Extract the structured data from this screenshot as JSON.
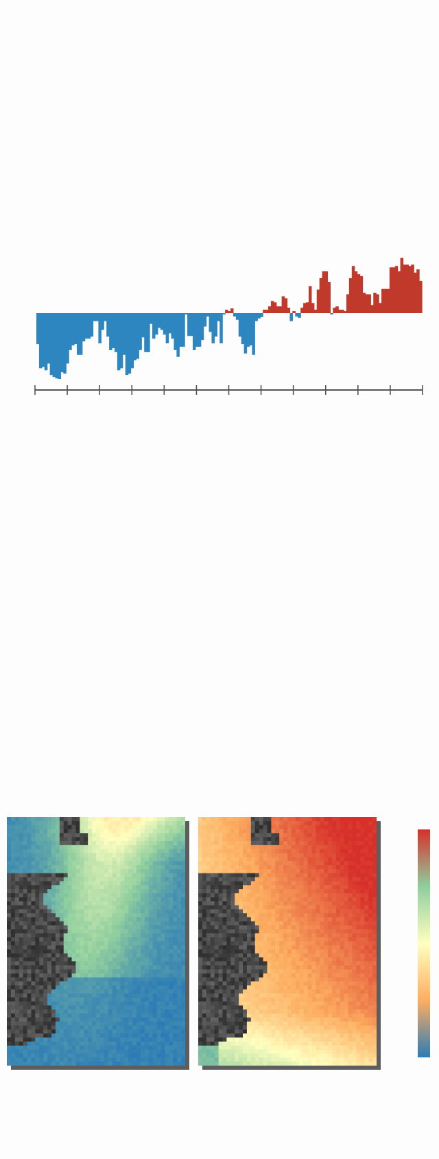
{
  "chart_data": {
    "type": "bar",
    "title": "",
    "xlabel": "",
    "ylabel": "",
    "ylim": [
      -1.0,
      0.85
    ],
    "colors": {
      "positive": "#c0392b",
      "negative": "#2e86c1"
    },
    "axis_ticks": 13,
    "values": [
      -0.46,
      -0.82,
      -0.8,
      -0.85,
      -0.75,
      -0.92,
      -0.95,
      -0.97,
      -0.98,
      -0.88,
      -0.9,
      -0.75,
      -0.55,
      -0.48,
      -0.46,
      -0.62,
      -0.62,
      -0.42,
      -0.38,
      -0.38,
      -0.35,
      -0.12,
      -0.12,
      -0.45,
      -0.25,
      -0.12,
      -0.35,
      -0.55,
      -0.52,
      -0.58,
      -0.85,
      -0.82,
      -0.62,
      -0.92,
      -0.9,
      -0.82,
      -0.7,
      -0.68,
      -0.55,
      -0.36,
      -0.58,
      -0.58,
      -0.16,
      -0.38,
      -0.32,
      -0.22,
      -0.25,
      -0.32,
      -0.45,
      -0.3,
      -0.38,
      -0.55,
      -0.65,
      -0.5,
      -0.5,
      -0.02,
      -0.34,
      -0.34,
      -0.55,
      -0.5,
      -0.5,
      -0.4,
      -0.2,
      -0.05,
      -0.28,
      -0.45,
      -0.35,
      -0.12,
      -0.45,
      -0.02,
      0.05,
      0.03,
      0.07,
      -0.05,
      -0.1,
      -0.35,
      -0.46,
      -0.6,
      -0.5,
      -0.48,
      -0.62,
      -0.12,
      -0.08,
      -0.06,
      0.05,
      0.05,
      0.1,
      0.18,
      0.16,
      0.1,
      0.1,
      0.25,
      0.22,
      0.08,
      -0.12,
      0.03,
      -0.05,
      -0.07,
      0.08,
      0.15,
      0.16,
      0.4,
      0.15,
      0.05,
      0.35,
      0.52,
      0.62,
      0.62,
      0.46,
      -0.02,
      0.08,
      0.1,
      0.05,
      0.05,
      0.03,
      0.28,
      0.52,
      0.7,
      0.62,
      0.58,
      0.55,
      0.3,
      0.28,
      0.28,
      0.12,
      0.3,
      0.28,
      0.15,
      0.36,
      0.36,
      0.36,
      0.68,
      0.68,
      0.7,
      0.62,
      0.82,
      0.72,
      0.72,
      0.7,
      0.72,
      0.6,
      0.65,
      0.48
    ]
  },
  "maps": {
    "left": {
      "palette": "cool"
    },
    "right": {
      "palette": "warm"
    }
  },
  "colorbar": {
    "stops": [
      "#d7302a",
      "#8fce9e",
      "#ffffbf",
      "#fdae61",
      "#2c7bb6"
    ]
  }
}
